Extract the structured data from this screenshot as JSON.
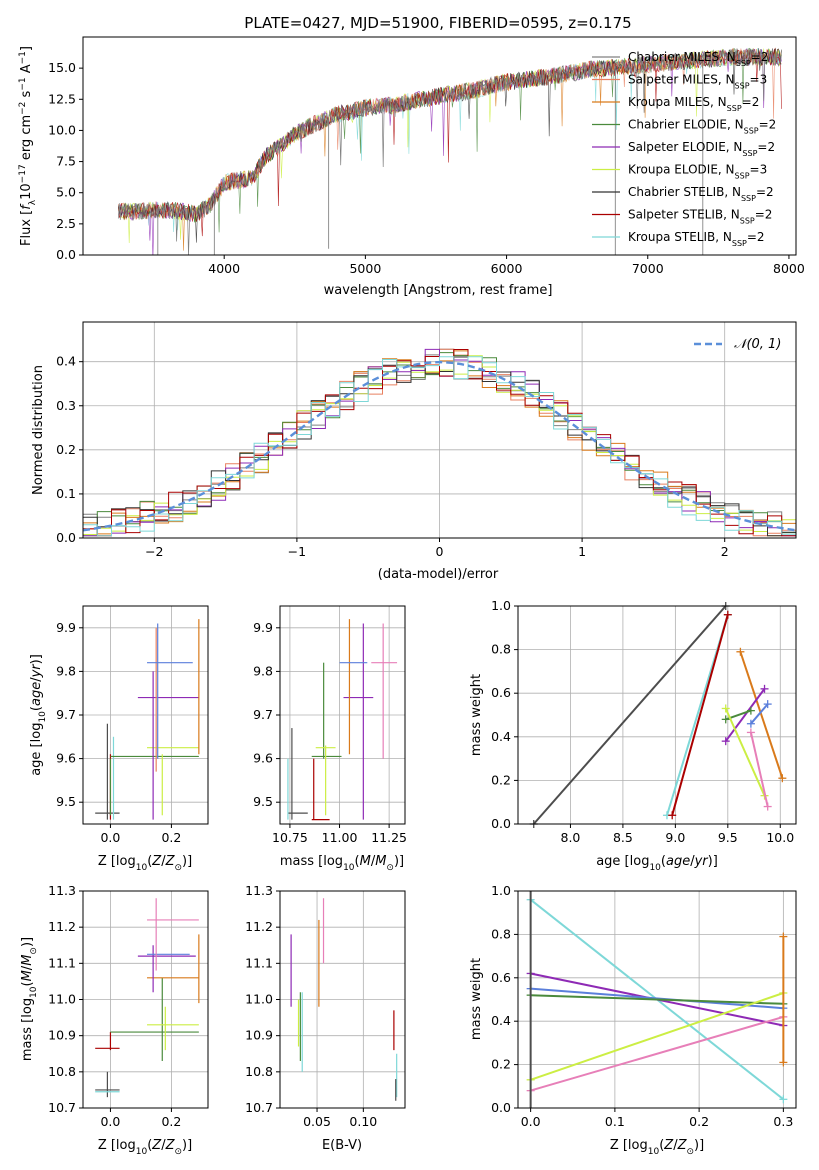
{
  "figure": {
    "title": "PLATE=0427, MJD=51900, FIBERID=0595, z=0.175"
  },
  "colors": {
    "Chabrier MILES": "#808080",
    "Salpeter MILES": "#e88060",
    "Kroupa MILES": "#d97a1b",
    "Chabrier ELODIE": "#4a8a3c",
    "Salpeter ELODIE": "#8e2ab5",
    "Kroupa ELODIE": "#ccee44",
    "Chabrier STELIB": "#333333",
    "Salpeter STELIB": "#aa0000",
    "Kroupa STELIB": "#7ed8d8",
    "blue_model": "#5b7fdb",
    "pink_model": "#e77fb8",
    "dark_grey": "#4d4d4d",
    "gaussian": "#5b8fd9",
    "grid": "#b0b0b0"
  },
  "chart_data": [
    {
      "type": "line",
      "panel": "spectrum",
      "title": "PLATE=0427, MJD=51900, FIBERID=0595, z=0.175",
      "xlabel": "wavelength [Angstrom, rest frame]",
      "ylabel_parts": [
        "Flux [",
        "f",
        "λ",
        "10",
        "−17",
        " erg cm",
        "−2",
        " s",
        "−1",
        " A",
        "−1",
        "]"
      ],
      "xlim": [
        3000,
        8050
      ],
      "ylim": [
        0,
        17.5
      ],
      "xticks": [
        4000,
        5000,
        6000,
        7000,
        8000
      ],
      "yticks": [
        "0.0",
        "2.5",
        "5.0",
        "7.5",
        "10.0",
        "12.5",
        "15.0"
      ],
      "grid": false,
      "legend_position": "top-right",
      "legend": [
        {
          "imf": "Chabrier",
          "lib": "MILES",
          "n": "2"
        },
        {
          "imf": "Salpeter",
          "lib": "MILES",
          "n": "3"
        },
        {
          "imf": "Kroupa",
          "lib": "MILES",
          "n": "2"
        },
        {
          "imf": "Chabrier",
          "lib": "ELODIE",
          "n": "2"
        },
        {
          "imf": "Salpeter",
          "lib": "ELODIE",
          "n": "2"
        },
        {
          "imf": "Kroupa",
          "lib": "ELODIE",
          "n": "3"
        },
        {
          "imf": "Chabrier",
          "lib": "STELIB",
          "n": "2"
        },
        {
          "imf": "Salpeter",
          "lib": "STELIB",
          "n": "2"
        },
        {
          "imf": "Kroupa",
          "lib": "STELIB",
          "n": "2"
        }
      ],
      "continuum": {
        "x": [
          3250,
          3400,
          3500,
          3600,
          3700,
          3800,
          3900,
          4000,
          4100,
          4200,
          4300,
          4400,
          4500,
          4600,
          4700,
          4800,
          4900,
          5000,
          5100,
          5200,
          5300,
          5400,
          5500,
          5600,
          5700,
          5800,
          5900,
          6000,
          6100,
          6200,
          6300,
          6400,
          6500,
          6600,
          6700,
          6800,
          6900,
          7000,
          7100,
          7200,
          7300,
          7400,
          7500,
          7600,
          7700,
          7800,
          7900
        ],
        "y": [
          3.5,
          3.5,
          3.6,
          3.6,
          3.5,
          3.3,
          4.0,
          5.8,
          6.0,
          6.2,
          8.0,
          8.8,
          9.7,
          10.3,
          10.8,
          11.3,
          11.5,
          11.8,
          12.0,
          12.0,
          12.3,
          12.5,
          12.7,
          12.9,
          13.1,
          13.3,
          13.6,
          13.9,
          14.0,
          14.2,
          14.3,
          14.5,
          14.7,
          14.9,
          15.0,
          15.1,
          15.2,
          15.3,
          15.4,
          15.5,
          15.6,
          15.7,
          15.8,
          15.9,
          15.9,
          15.9,
          15.9
        ]
      }
    },
    {
      "type": "line",
      "panel": "residuals",
      "xlabel": "(data-model)/error",
      "ylabel": "Normed distribution",
      "xlim": [
        -2.5,
        2.5
      ],
      "ylim": [
        0,
        0.49
      ],
      "xticks": [
        "−2",
        "−1",
        "0",
        "1",
        "2"
      ],
      "yticks": [
        "0.0",
        "0.1",
        "0.2",
        "0.3",
        "0.4"
      ],
      "grid": true,
      "legend": "𝒩(0, 1)",
      "legend_position": "top-right",
      "gaussian": {
        "mean": 0,
        "sigma": 1
      }
    },
    {
      "type": "scatter",
      "panel": "age-vs-Z",
      "xlabel": "Z [log10(Z/Z⊙)]",
      "ylabel": "age  [log10(age/yr)]",
      "xlim": [
        -0.09,
        0.32
      ],
      "ylim": [
        9.45,
        9.95
      ],
      "xticks": [
        "0.0",
        "0.2"
      ],
      "yticks": [
        "9.5",
        "9.6",
        "9.7",
        "9.8",
        "9.9"
      ],
      "grid": true,
      "points": [
        {
          "color": "dark_grey",
          "x": [
            -0.05,
            0.045
          ],
          "y": [
            9.47,
            9.68
          ]
        },
        {
          "color": "Salpeter STELIB",
          "x": [
            0.0,
            0.01
          ],
          "y": [
            9.46,
            9.61
          ]
        },
        {
          "color": "Kroupa STELIB",
          "x": [
            0.0,
            0.01
          ],
          "y": [
            9.46,
            9.65
          ]
        },
        {
          "color": "Chabrier ELODIE",
          "x": [
            0.0,
            0.29
          ],
          "y": [
            9.6,
            9.61
          ]
        },
        {
          "color": "Kroupa ELODIE",
          "x": [
            0.12,
            0.29
          ],
          "y": [
            9.46,
            9.63
          ]
        },
        {
          "color": "Salpeter ELODIE",
          "x": [
            0.09,
            0.29
          ],
          "y": [
            9.46,
            9.74
          ]
        },
        {
          "color": "Salpeter MILES",
          "x": [
            0.12,
            0.27
          ],
          "y": [
            9.57,
            9.9
          ]
        },
        {
          "color": "blue_model",
          "x": [
            0.12,
            0.27
          ],
          "y": [
            9.6,
            9.91
          ]
        },
        {
          "color": "Kroupa MILES",
          "x": [
            0.27,
            0.3
          ],
          "y": [
            9.61,
            9.92
          ]
        }
      ]
    },
    {
      "type": "scatter",
      "panel": "age-vs-mass",
      "xlabel": "mass [log10(M/M⊙)]",
      "ylabel": "",
      "xlim": [
        10.7,
        11.33
      ],
      "ylim": [
        9.45,
        9.95
      ],
      "xticks": [
        "10.75",
        "11.00",
        "11.25"
      ],
      "yticks": [
        "9.5",
        "9.6",
        "9.7",
        "9.8",
        "9.9"
      ],
      "grid": true
    },
    {
      "type": "line",
      "panel": "weight-vs-age",
      "xlabel": "age  [log10(age/yr)]",
      "ylabel": "mass weight",
      "xlim": [
        7.5,
        10.15
      ],
      "ylim": [
        0,
        1.0
      ],
      "xticks": [
        "8.0",
        "8.5",
        "9.0",
        "9.5",
        "10.0"
      ],
      "yticks": [
        "0.0",
        "0.2",
        "0.4",
        "0.6",
        "0.8",
        "1.0"
      ],
      "grid": true,
      "series": [
        {
          "color": "dark_grey",
          "x": [
            7.65,
            9.48
          ],
          "y": [
            0.0,
            1.0
          ]
        },
        {
          "color": "Kroupa STELIB",
          "x": [
            8.92,
            9.5
          ],
          "y": [
            0.04,
            0.96
          ]
        },
        {
          "color": "Salpeter STELIB",
          "x": [
            8.97,
            9.5
          ],
          "y": [
            0.04,
            0.96
          ]
        },
        {
          "color": "Kroupa MILES",
          "x": [
            9.62,
            10.02
          ],
          "y": [
            0.79,
            0.21
          ]
        },
        {
          "color": "Salpeter ELODIE",
          "x": [
            9.48,
            9.85
          ],
          "y": [
            0.38,
            0.62
          ]
        },
        {
          "color": "blue_model",
          "x": [
            9.72,
            9.88
          ],
          "y": [
            0.46,
            0.55
          ]
        },
        {
          "color": "Chabrier ELODIE",
          "x": [
            9.48,
            9.72
          ],
          "y": [
            0.48,
            0.52
          ]
        },
        {
          "color": "Kroupa ELODIE",
          "x": [
            9.48,
            9.85
          ],
          "y": [
            0.53,
            0.13
          ]
        },
        {
          "color": "pink_model",
          "x": [
            9.72,
            9.88
          ],
          "y": [
            0.42,
            0.08
          ]
        }
      ]
    },
    {
      "type": "scatter",
      "panel": "mass-vs-Z",
      "xlabel": "Z [log10(Z/Z⊙)]",
      "ylabel": "mass [log10(M/M⊙)]",
      "xlim": [
        -0.09,
        0.32
      ],
      "ylim": [
        10.7,
        11.3
      ],
      "xticks": [
        "0.0",
        "0.2"
      ],
      "yticks": [
        "10.7",
        "10.8",
        "10.9",
        "11.0",
        "11.1",
        "11.2",
        "11.3"
      ],
      "grid": true
    },
    {
      "type": "scatter",
      "panel": "mass-vs-ebv",
      "xlabel": "E(B-V)",
      "ylabel": "",
      "xlim": [
        0.01,
        0.145
      ],
      "ylim": [
        10.7,
        11.3
      ],
      "xticks": [
        "0.05",
        "0.10"
      ],
      "yticks": [
        "10.7",
        "10.8",
        "10.9",
        "11.0",
        "11.1",
        "11.2",
        "11.3"
      ],
      "grid": true
    },
    {
      "type": "line",
      "panel": "weight-vs-Z",
      "xlabel": "Z [log10(Z/Z⊙)]",
      "ylabel": "mass weight",
      "xlim": [
        -0.015,
        0.315
      ],
      "ylim": [
        0,
        1.0
      ],
      "xticks": [
        "0.0",
        "0.1",
        "0.2",
        "0.3"
      ],
      "yticks": [
        "0.0",
        "0.2",
        "0.4",
        "0.6",
        "0.8",
        "1.0"
      ],
      "grid": true,
      "series": [
        {
          "color": "Kroupa STELIB",
          "x": [
            0.0,
            0.3
          ],
          "y": [
            0.96,
            0.04
          ]
        },
        {
          "color": "Salpeter ELODIE",
          "x": [
            0.0,
            0.3
          ],
          "y": [
            0.62,
            0.38
          ]
        },
        {
          "color": "blue_model",
          "x": [
            0.0,
            0.3
          ],
          "y": [
            0.55,
            0.46
          ]
        },
        {
          "color": "Chabrier ELODIE",
          "x": [
            0.0,
            0.3
          ],
          "y": [
            0.52,
            0.48
          ]
        },
        {
          "color": "Kroupa ELODIE",
          "x": [
            0.0,
            0.3
          ],
          "y": [
            0.13,
            0.53
          ]
        },
        {
          "color": "pink_model",
          "x": [
            0.0,
            0.3
          ],
          "y": [
            0.08,
            0.42
          ]
        }
      ]
    }
  ]
}
